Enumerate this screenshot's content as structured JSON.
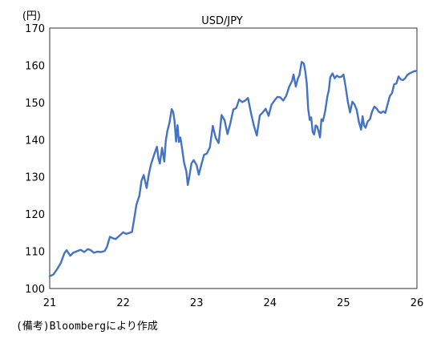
{
  "chart_data": {
    "type": "line",
    "title": "USD/JPY",
    "unit_label": "(円)",
    "x_ticks": [
      21,
      22,
      23,
      24,
      25,
      26
    ],
    "x_tick_labels": [
      "21",
      "22",
      "23",
      "24",
      "25",
      "26"
    ],
    "xlim": [
      21,
      26
    ],
    "ylim": [
      100,
      170
    ],
    "y_ticks": [
      100,
      110,
      120,
      130,
      140,
      150,
      160,
      170
    ],
    "y_tick_labels": [
      "100",
      "110",
      "120",
      "130",
      "140",
      "150",
      "160",
      "170"
    ],
    "grid": false,
    "line_color": "#4472c4",
    "series": [
      {
        "x": [
          21.0,
          21.05,
          21.1,
          21.15,
          21.2,
          21.23,
          21.28,
          21.32,
          21.38,
          21.42,
          21.47,
          21.52,
          21.56,
          21.6,
          21.65,
          21.7,
          21.75,
          21.78,
          21.82,
          21.86,
          21.9,
          21.95,
          22.0,
          22.04,
          22.08,
          22.12,
          22.15,
          22.18,
          22.22,
          22.25,
          22.28,
          22.32,
          22.35,
          22.38,
          22.42,
          22.46,
          22.48,
          22.5,
          22.53,
          22.56,
          22.58,
          22.6,
          22.63,
          22.66,
          22.68,
          22.7,
          22.72,
          22.74,
          22.76,
          22.78,
          22.8,
          22.83,
          22.86,
          22.88,
          22.9,
          22.93,
          22.96,
          23.0,
          23.03,
          23.06,
          23.1,
          23.14,
          23.18,
          23.22,
          23.26,
          23.3,
          23.34,
          23.38,
          23.42,
          23.46,
          23.5,
          23.54,
          23.58,
          23.62,
          23.66,
          23.7,
          23.74,
          23.78,
          23.82,
          23.86,
          23.9,
          23.94,
          23.98,
          24.02,
          24.06,
          24.1,
          24.14,
          24.18,
          24.22,
          24.26,
          24.3,
          24.32,
          24.35,
          24.38,
          24.4,
          24.43,
          24.46,
          24.48,
          24.5,
          24.52,
          24.54,
          24.56,
          24.58,
          24.6,
          24.62,
          24.64,
          24.66,
          24.68,
          24.7,
          24.72,
          24.75,
          24.78,
          24.8,
          24.82,
          24.85,
          24.88,
          24.91,
          24.94,
          24.97,
          25.0,
          25.03,
          25.06,
          25.09,
          25.12,
          25.15,
          25.18,
          25.21,
          25.24,
          25.26,
          25.28,
          25.3,
          25.33,
          25.36,
          25.39,
          25.42,
          25.45,
          25.48,
          25.51,
          25.54,
          25.57,
          25.6,
          25.63,
          25.66,
          25.69,
          25.72,
          25.75,
          25.78,
          25.81,
          25.84,
          25.87,
          25.9,
          25.93,
          25.96,
          25.99
        ],
        "values": [
          103.3,
          103.8,
          105.2,
          106.8,
          109.5,
          110.3,
          108.8,
          109.6,
          110.1,
          110.4,
          109.8,
          110.6,
          110.3,
          109.6,
          109.9,
          109.8,
          110.1,
          111.2,
          113.9,
          113.5,
          113.3,
          114.2,
          115.1,
          114.7,
          114.9,
          115.2,
          118.6,
          122.5,
          124.9,
          129.0,
          130.5,
          127.0,
          130.8,
          133.4,
          135.9,
          138.1,
          135.0,
          133.6,
          137.8,
          134.1,
          139.5,
          142.2,
          144.5,
          148.2,
          147.5,
          145.0,
          139.5,
          143.9,
          139.4,
          140.6,
          137.9,
          133.8,
          131.5,
          127.8,
          129.9,
          133.6,
          134.5,
          133.2,
          130.6,
          132.9,
          135.9,
          136.3,
          137.9,
          143.7,
          140.5,
          139.1,
          146.6,
          145.3,
          141.5,
          144.4,
          148.1,
          148.5,
          150.8,
          150.1,
          150.5,
          151.2,
          147.2,
          143.8,
          141.1,
          146.5,
          147.3,
          148.3,
          146.4,
          149.4,
          150.5,
          151.5,
          151.4,
          150.5,
          151.8,
          154.2,
          155.8,
          157.5,
          154.3,
          156.5,
          157.3,
          160.9,
          160.5,
          158.3,
          155.1,
          148.2,
          145.3,
          146.0,
          142.1,
          141.4,
          143.8,
          143.6,
          142.3,
          140.6,
          145.5,
          145.0,
          147.6,
          151.5,
          153.3,
          156.8,
          157.8,
          156.5,
          157.2,
          156.8,
          156.9,
          157.5,
          154.2,
          150.1,
          147.3,
          150.2,
          149.5,
          148.0,
          144.8,
          142.7,
          146.3,
          143.8,
          143.2,
          144.9,
          145.5,
          147.6,
          148.9,
          148.4,
          147.5,
          147.2,
          147.6,
          147.2,
          149.5,
          151.7,
          152.5,
          154.9,
          155.1,
          157.0,
          156.2,
          156.0,
          156.5,
          157.4,
          157.8,
          158.1,
          158.4,
          158.5
        ]
      }
    ],
    "note": "(備考)Bloombergにより作成"
  }
}
